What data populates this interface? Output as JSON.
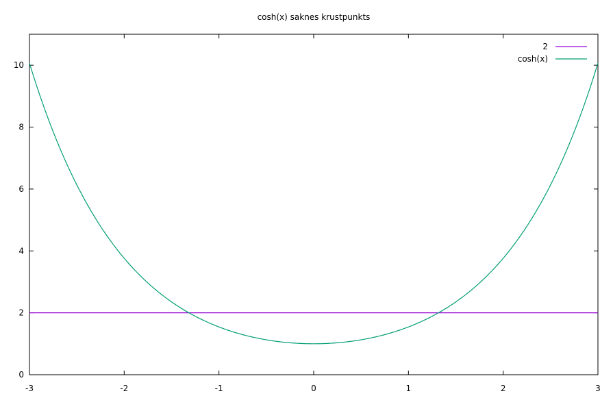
{
  "chart_data": {
    "type": "line",
    "title": "cosh(x) saknes krustpunkts",
    "xlabel": "",
    "ylabel": "",
    "xlim": [
      -3,
      3
    ],
    "ylim": [
      0,
      11
    ],
    "x_ticks": [
      -3,
      -2,
      -1,
      0,
      1,
      2,
      3
    ],
    "y_ticks": [
      0,
      2,
      4,
      6,
      8,
      10
    ],
    "legend_position": "top-right",
    "grid": false,
    "series": [
      {
        "name": "2",
        "color": "#9400d3",
        "x": [
          -3,
          3
        ],
        "y": [
          2,
          2
        ]
      },
      {
        "name": "cosh(x)",
        "color": "#009e73",
        "x": [
          -3,
          -2.75,
          -2.5,
          -2.25,
          -2,
          -1.75,
          -1.5,
          -1.25,
          -1,
          -0.75,
          -0.5,
          -0.25,
          0,
          0.25,
          0.5,
          0.75,
          1,
          1.25,
          1.5,
          1.75,
          2,
          2.25,
          2.5,
          2.75,
          3
        ],
        "y": [
          10.07,
          7.85,
          6.13,
          4.8,
          3.76,
          2.96,
          2.35,
          1.89,
          1.54,
          1.29,
          1.13,
          1.03,
          1.0,
          1.03,
          1.13,
          1.29,
          1.54,
          1.89,
          2.35,
          2.96,
          3.76,
          4.8,
          6.13,
          7.85,
          10.07
        ]
      }
    ]
  }
}
